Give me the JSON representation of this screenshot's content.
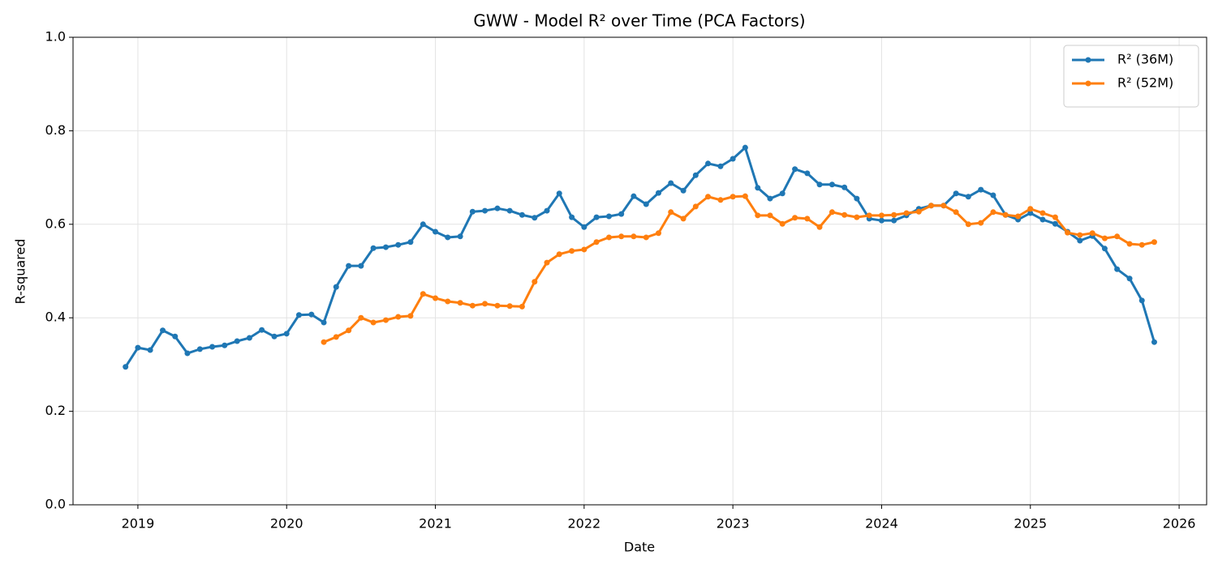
{
  "chart_data": {
    "type": "line",
    "title": "GWW - Model R² over Time (PCA Factors)",
    "x_label": "Date",
    "y_label": "R-squared",
    "x": [
      2018.917,
      2019,
      2019.083,
      2019.167,
      2019.25,
      2019.333,
      2019.417,
      2019.5,
      2019.583,
      2019.667,
      2019.75,
      2019.833,
      2019.917,
      2020,
      2020.083,
      2020.167,
      2020.25,
      2020.333,
      2020.417,
      2020.5,
      2020.583,
      2020.667,
      2020.75,
      2020.833,
      2020.917,
      2021,
      2021.083,
      2021.167,
      2021.25,
      2021.333,
      2021.417,
      2021.5,
      2021.583,
      2021.667,
      2021.75,
      2021.833,
      2021.917,
      2022,
      2022.083,
      2022.167,
      2022.25,
      2022.333,
      2022.417,
      2022.5,
      2022.583,
      2022.667,
      2022.75,
      2022.833,
      2022.917,
      2023,
      2023.083,
      2023.167,
      2023.25,
      2023.333,
      2023.417,
      2023.5,
      2023.583,
      2023.667,
      2023.75,
      2023.833,
      2023.917,
      2024,
      2024.083,
      2024.167,
      2024.25,
      2024.333,
      2024.417,
      2024.5,
      2024.583,
      2024.667,
      2024.75,
      2024.833,
      2024.917,
      2025,
      2025.083,
      2025.167,
      2025.25,
      2025.333,
      2025.417,
      2025.5,
      2025.583,
      2025.667,
      2025.75,
      2025.833
    ],
    "series": [
      {
        "name": "R² (36M)",
        "color": "#1f77b4",
        "values": [
          0.295,
          0.336,
          0.331,
          0.373,
          0.36,
          0.324,
          0.333,
          0.338,
          0.341,
          0.35,
          0.357,
          0.374,
          0.36,
          0.366,
          0.406,
          0.407,
          0.39,
          0.466,
          0.511,
          0.511,
          0.549,
          0.551,
          0.556,
          0.562,
          0.6,
          0.584,
          0.572,
          0.574,
          0.627,
          0.629,
          0.634,
          0.629,
          0.62,
          0.614,
          0.629,
          0.666,
          0.615,
          0.594,
          0.615,
          0.617,
          0.622,
          0.66,
          0.643,
          0.667,
          0.688,
          0.672,
          0.705,
          0.73,
          0.724,
          0.74,
          0.764,
          0.678,
          0.655,
          0.666,
          0.718,
          0.709,
          0.685,
          0.685,
          0.679,
          0.655,
          0.612,
          0.608,
          0.608,
          0.619,
          0.633,
          0.64,
          0.64,
          0.666,
          0.659,
          0.674,
          0.662,
          0.62,
          0.61,
          0.624,
          0.61,
          0.601,
          0.584,
          0.565,
          0.575,
          0.548,
          0.504,
          0.484,
          0.437,
          0.348
        ]
      },
      {
        "name": "R² (52M)",
        "color": "#ff7f0e",
        "values": [
          null,
          null,
          null,
          null,
          null,
          null,
          null,
          null,
          null,
          null,
          null,
          null,
          null,
          null,
          null,
          null,
          0.348,
          0.359,
          0.373,
          0.4,
          0.39,
          0.395,
          0.402,
          0.404,
          0.451,
          0.442,
          0.435,
          0.432,
          0.426,
          0.43,
          0.426,
          0.425,
          0.424,
          0.477,
          0.518,
          0.536,
          0.543,
          0.546,
          0.562,
          0.572,
          0.574,
          0.574,
          0.572,
          0.581,
          0.626,
          0.612,
          0.638,
          0.659,
          0.652,
          0.659,
          0.66,
          0.619,
          0.619,
          0.601,
          0.614,
          0.612,
          0.594,
          0.626,
          0.62,
          0.615,
          0.619,
          0.619,
          0.62,
          0.624,
          0.627,
          0.64,
          0.64,
          0.626,
          0.6,
          0.603,
          0.626,
          0.62,
          0.617,
          0.633,
          0.624,
          0.615,
          0.582,
          0.577,
          0.581,
          0.57,
          0.574,
          0.558,
          0.556,
          0.562
        ]
      }
    ],
    "xlim": [
      2018.564,
      2026.185
    ],
    "xticks": [
      2019,
      2020,
      2021,
      2022,
      2023,
      2024,
      2025,
      2026
    ],
    "ylim": [
      0,
      1
    ],
    "yticks": [
      {
        "value": 0,
        "label": "0.0"
      },
      0.2,
      0.4,
      0.6,
      0.8,
      {
        "value": 1,
        "label": "1.0"
      }
    ],
    "grid": true,
    "legend": "upper right"
  }
}
